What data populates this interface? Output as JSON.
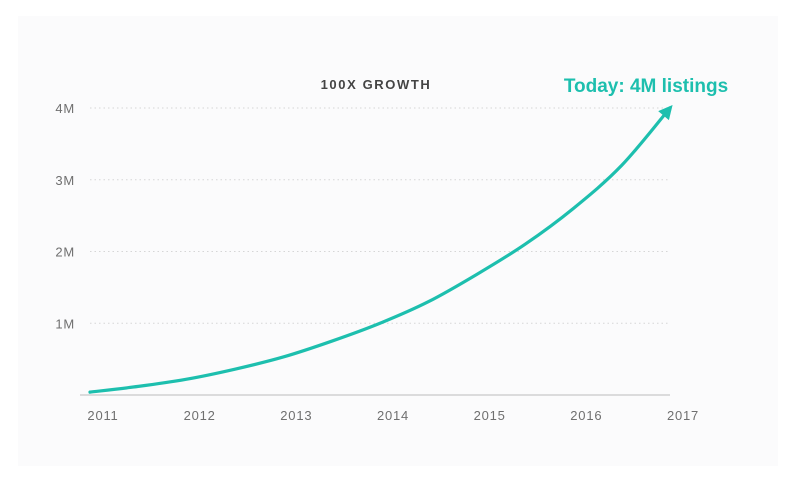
{
  "chart_data": {
    "type": "line",
    "title": "100X GROWTH",
    "xlabel": "",
    "ylabel": "",
    "x": [
      "2011",
      "2012",
      "2013",
      "2014",
      "2015",
      "2016",
      "2017"
    ],
    "y_ticks": [
      "1M",
      "2M",
      "3M",
      "4M"
    ],
    "ylim": [
      0,
      4000000
    ],
    "series": [
      {
        "values": [
          {
            "x": 2011.0,
            "y": 40000
          },
          {
            "x": 2011.5,
            "y": 120000
          },
          {
            "x": 2012.0,
            "y": 220000
          },
          {
            "x": 2012.5,
            "y": 360000
          },
          {
            "x": 2013.0,
            "y": 530000
          },
          {
            "x": 2013.5,
            "y": 750000
          },
          {
            "x": 2014.0,
            "y": 1000000
          },
          {
            "x": 2014.5,
            "y": 1300000
          },
          {
            "x": 2015.0,
            "y": 1680000
          },
          {
            "x": 2015.5,
            "y": 2100000
          },
          {
            "x": 2016.0,
            "y": 2600000
          },
          {
            "x": 2016.5,
            "y": 3200000
          },
          {
            "x": 2017.0,
            "y": 4000000
          }
        ]
      }
    ],
    "annotation": "Today: 4M listings",
    "grid": true,
    "line_color": "#1dbfae",
    "grid_color": "#d6d6d6",
    "axis_color": "#c8c8c8"
  }
}
